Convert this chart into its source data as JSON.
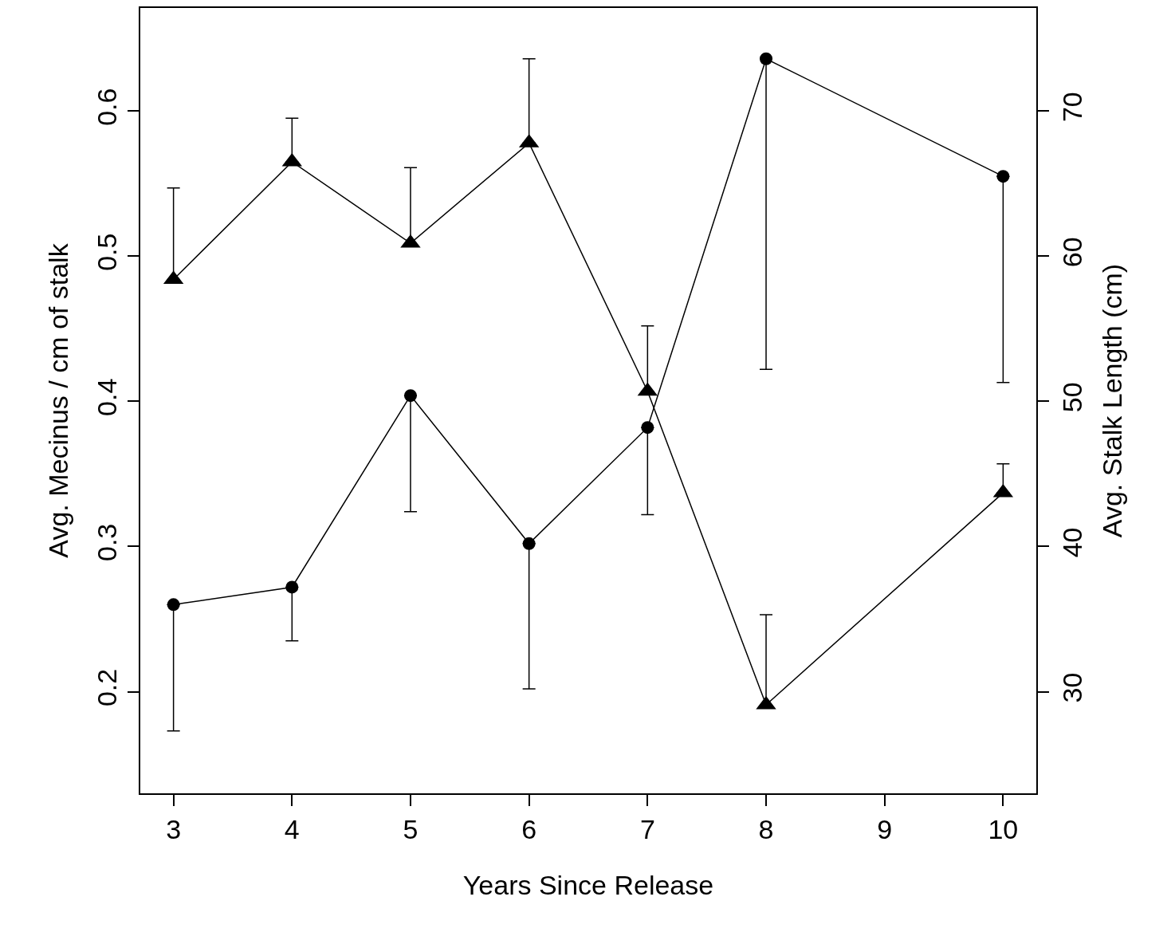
{
  "chart_data": {
    "type": "line",
    "xlabel": "Years Since Release",
    "ylabel": "Avg. Mecinus / cm of stalk",
    "y2label": "Avg. Stalk Length (cm)",
    "x": [
      3,
      4,
      5,
      6,
      7,
      8,
      10
    ],
    "xlim": [
      2.72,
      10.28
    ],
    "xticks": [
      3,
      4,
      5,
      6,
      7,
      8,
      9,
      10
    ],
    "ylim": [
      0.13,
      0.671
    ],
    "yticks": [
      {
        "value": 0.2,
        "label": "0.2"
      },
      {
        "value": 0.3,
        "label": "0.3"
      },
      {
        "value": 0.4,
        "label": "0.4"
      },
      {
        "value": 0.5,
        "label": "0.5"
      },
      {
        "value": 0.6,
        "label": "0.6"
      }
    ],
    "y2lim": [
      23.0,
      77.1
    ],
    "y2ticks": [
      30,
      40,
      50,
      60,
      70
    ],
    "line_style": "solid",
    "series": [
      {
        "color": "#000000",
        "marker": "circle",
        "values": [
          0.26,
          0.272,
          0.404,
          0.302,
          0.382,
          0.636,
          0.555
        ],
        "errors": [
          [
            0.173,
            0.26
          ],
          [
            0.235,
            0.272
          ],
          [
            0.324,
            0.404
          ],
          [
            0.202,
            0.302
          ],
          [
            0.322,
            0.382
          ],
          [
            0.422,
            0.636
          ],
          [
            0.413,
            0.555
          ]
        ]
      },
      {
        "color": "#000000",
        "marker": "triangle",
        "axis": "y2",
        "values": [
          58.4,
          66.5,
          60.9,
          67.8,
          50.7,
          29.1,
          43.7
        ],
        "errors": [
          [
            58.4,
            64.7
          ],
          [
            66.5,
            69.5
          ],
          [
            60.9,
            66.1
          ],
          [
            67.8,
            73.6
          ],
          [
            50.7,
            55.2
          ],
          [
            29.1,
            35.3
          ],
          [
            43.7,
            45.7
          ]
        ]
      }
    ]
  }
}
